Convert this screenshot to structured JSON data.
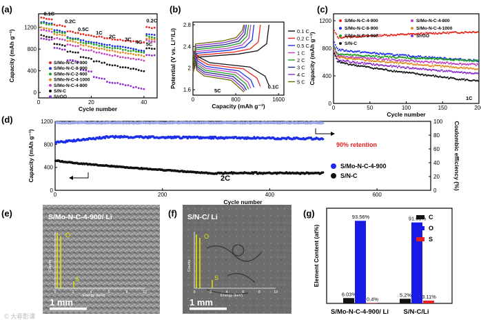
{
  "watermark": "© 大菲影课",
  "panels": {
    "a": "(a)",
    "b": "(b)",
    "c": "(c)",
    "d": "(d)",
    "e": "(e)",
    "f": "(f)",
    "g": "(g)"
  },
  "sem": {
    "e": {
      "title": "S/Mo-N-C-4-900/ Li",
      "scale": "1 mm",
      "eds_o": "O",
      "eds_s": "S",
      "eds_ylabel": "Counts",
      "eds_xlabel": "Energy (keV)",
      "eds_ticks": [
        "0",
        "2",
        "4",
        "6",
        "8",
        "10"
      ]
    },
    "f": {
      "title": "S/N-C/ Li",
      "scale": "1 mm",
      "eds_o": "O",
      "eds_s": "S",
      "eds_ylabel": "Counts",
      "eds_xlabel": "Energy (keV)",
      "eds_ticks": [
        "0",
        "2",
        "4",
        "6",
        "8",
        "10"
      ]
    }
  },
  "chart_data": [
    {
      "id": "a",
      "type": "scatter",
      "xlabel": "Cycle number",
      "ylabel": "Capacity (mAh g⁻¹)",
      "xlim": [
        0,
        45
      ],
      "ylim": [
        -100,
        1450
      ],
      "xticks": [
        0,
        20,
        40
      ],
      "yticks": [
        0,
        400,
        800,
        1200
      ],
      "rate_labels": [
        "0.1C",
        "0.2C",
        "0.5C",
        "1C",
        "2C",
        "3C",
        "4C",
        "5C",
        "0.2C"
      ],
      "series": [
        {
          "name": "S/Mo-N-C-4-900",
          "color": "#e8231c",
          "steps": [
            1380,
            1250,
            1130,
            1080,
            1040,
            1000,
            970,
            950,
            1210
          ]
        },
        {
          "name": "S/Mo-N-C-8-900",
          "color": "#1c2ee8",
          "steps": [
            1300,
            1150,
            1020,
            960,
            920,
            880,
            840,
            800,
            1080
          ]
        },
        {
          "name": "S/Mo-N-C-2-900",
          "color": "#1f9e1f",
          "steps": [
            1280,
            1120,
            1000,
            930,
            880,
            840,
            800,
            770,
            1040
          ]
        },
        {
          "name": "S/Mo-N-C-4-1000",
          "color": "#e08a1e",
          "steps": [
            1200,
            1080,
            950,
            880,
            830,
            780,
            740,
            700,
            990
          ]
        },
        {
          "name": "S/Mo-N-C-4-800",
          "color": "#c040c0",
          "steps": [
            1150,
            1000,
            880,
            800,
            750,
            700,
            660,
            620,
            960
          ]
        },
        {
          "name": "S/N-C",
          "color": "#111111",
          "steps": [
            1050,
            900,
            760,
            660,
            580,
            520,
            470,
            430,
            820
          ]
        },
        {
          "name": "S/rGO",
          "color": "#8b2fc9",
          "steps": [
            1000,
            820,
            600,
            420,
            280,
            200,
            150,
            100,
            700
          ]
        }
      ]
    },
    {
      "id": "b",
      "type": "line",
      "xlabel": "Capacity (mAh g⁻¹)",
      "ylabel": "Potential (V vs. Li⁺/Li)",
      "xlim": [
        0,
        1700
      ],
      "ylim": [
        1.5,
        2.85
      ],
      "xticks": [
        0,
        800,
        1600
      ],
      "yticks": [
        1.6,
        2.0,
        2.4,
        2.8
      ],
      "annotations": {
        "left": "5C",
        "right": "0.1C"
      },
      "series": [
        {
          "name": "0.1 C",
          "color": "#111111",
          "cap": 1420
        },
        {
          "name": "0.2 C",
          "color": "#e8231c",
          "cap": 1260
        },
        {
          "name": "0.5 C",
          "color": "#1c2ee8",
          "cap": 1140
        },
        {
          "name": "1 C",
          "color": "#c040c0",
          "cap": 1080
        },
        {
          "name": "2 C",
          "color": "#1f9e1f",
          "cap": 1040
        },
        {
          "name": "3 C",
          "color": "#1a2c8c",
          "cap": 1000
        },
        {
          "name": "4 C",
          "color": "#8b2fc9",
          "cap": 970
        },
        {
          "name": "5 C",
          "color": "#6a6a00",
          "cap": 950
        }
      ]
    },
    {
      "id": "c",
      "type": "scatter",
      "xlabel": "Cycle number",
      "ylabel": "Capacity (mAh g⁻¹)",
      "xlim": [
        0,
        200
      ],
      "ylim": [
        0,
        1300
      ],
      "xticks": [
        0,
        50,
        100,
        150,
        200
      ],
      "yticks": [
        0,
        400,
        800,
        1200
      ],
      "rate": "1C",
      "series": [
        {
          "name": "S/Mo-N-C-4-900",
          "color": "#e8231c",
          "start": 950,
          "end": 1040
        },
        {
          "name": "S/Mo-N-C-4-800",
          "color": "#c040c0",
          "start": 700,
          "end": 560
        },
        {
          "name": "S/Mo-N-C-8-900",
          "color": "#1c2ee8",
          "start": 790,
          "end": 620
        },
        {
          "name": "S/Mo-N-C-4-1000",
          "color": "#e08a1e",
          "start": 680,
          "end": 500
        },
        {
          "name": "S/Mo-N-C-2-900",
          "color": "#1f9e1f",
          "start": 720,
          "end": 620
        },
        {
          "name": "S/rGO",
          "color": "#8b2fc9",
          "start": 640,
          "end": 430
        },
        {
          "name": "S/N-C",
          "color": "#111111",
          "start": 620,
          "end": 320
        }
      ]
    },
    {
      "id": "d",
      "type": "scatter",
      "xlabel": "Cycle number",
      "ylabel": "Capacity (mAh g⁻¹)",
      "y2label": "Coulombic efficiency (%)",
      "xlim": [
        0,
        700
      ],
      "ylim": [
        0,
        1200
      ],
      "y2lim": [
        0,
        100
      ],
      "xticks": [
        0,
        200,
        400,
        600
      ],
      "yticks": [
        0,
        400,
        800,
        1200
      ],
      "y2ticks": [
        0,
        20,
        40,
        60,
        80,
        100
      ],
      "retention": "90% retention",
      "rate": "2C",
      "series": [
        {
          "name": "S/Mo-N-C-4-900",
          "color": "#1c2ee8",
          "start": 830,
          "mid": 930,
          "end": 900
        },
        {
          "name": "S/N-C",
          "color": "#111111",
          "start": 520,
          "mid": 290,
          "end": 300
        },
        {
          "name": "Coulombic efficiency",
          "color": "#8b95e0",
          "value": 98
        }
      ]
    },
    {
      "id": "g",
      "type": "bar",
      "ylabel": "Element Content (at%)",
      "categories": [
        "S/Mo-N-C-4-900/ Li",
        "S/N-C/Li"
      ],
      "series": [
        {
          "name": "C",
          "color": "#111111",
          "values": [
            6.03,
            5.2
          ]
        },
        {
          "name": "O",
          "color": "#1a1ae6",
          "values": [
            93.56,
            91.69
          ]
        },
        {
          "name": "S",
          "color": "#e62020",
          "values": [
            0.4,
            3.11
          ]
        }
      ],
      "value_labels": [
        [
          "6.03%",
          "93.56%",
          "0.4%"
        ],
        [
          "5.2%",
          "91.69%",
          "3.11%"
        ]
      ],
      "ylim": [
        0,
        100
      ]
    }
  ]
}
